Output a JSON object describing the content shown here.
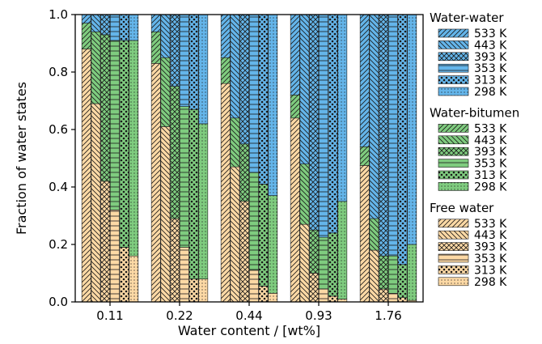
{
  "colors": {
    "water_water": "#64b5ea",
    "water_bitumen": "#7fcc7f",
    "free_water": "#fdd9a5",
    "edge": "#1a1a1a"
  },
  "hatch_patterns": {
    "533 K": "forward-diagonal",
    "443 K": "back-diagonal",
    "393 K": "cross-diagonal",
    "353 K": "horizontal",
    "313 K": "dots",
    "298 K": "small-dots"
  },
  "chart_data": {
    "type": "bar",
    "stacked": true,
    "title": "",
    "xlabel": "Water content / [wt%]",
    "ylabel": "Fraction of water states",
    "ylim": [
      0,
      1.0
    ],
    "yticks": [
      0.0,
      0.2,
      0.4,
      0.6,
      0.8,
      1.0
    ],
    "ytick_labels": [
      "0.0",
      "0.2",
      "0.4",
      "0.6",
      "0.8",
      "1.0"
    ],
    "grid": false,
    "legend_position": "right",
    "categories": [
      "0.11",
      "0.22",
      "0.44",
      "0.93",
      "1.76"
    ],
    "temperatures": [
      "533 K",
      "443 K",
      "393 K",
      "353 K",
      "313 K",
      "298 K"
    ],
    "stack_order": [
      "free_water",
      "water_bitumen",
      "water_water"
    ],
    "legend": [
      {
        "key": "water_water",
        "title": "Water-water"
      },
      {
        "key": "water_bitumen",
        "title": "Water-bitumen"
      },
      {
        "key": "free_water",
        "title": "Free water"
      }
    ],
    "free_water": {
      "0.11": [
        0.88,
        0.69,
        0.42,
        0.32,
        0.19,
        0.16
      ],
      "0.22": [
        0.83,
        0.61,
        0.29,
        0.19,
        0.08,
        0.08
      ],
      "0.44": [
        0.76,
        0.47,
        0.35,
        0.11,
        0.055,
        0.03
      ],
      "0.93": [
        0.64,
        0.27,
        0.1,
        0.045,
        0.02,
        0.01
      ],
      "1.76": [
        0.475,
        0.18,
        0.045,
        0.03,
        0.015,
        0.005
      ]
    },
    "water_bitumen": {
      "0.11": [
        0.09,
        0.25,
        0.51,
        0.59,
        0.72,
        0.75
      ],
      "0.22": [
        0.11,
        0.24,
        0.46,
        0.49,
        0.59,
        0.54
      ],
      "0.44": [
        0.09,
        0.17,
        0.2,
        0.34,
        0.355,
        0.34
      ],
      "0.93": [
        0.08,
        0.21,
        0.15,
        0.18,
        0.22,
        0.34
      ],
      "1.76": [
        0.065,
        0.11,
        0.115,
        0.13,
        0.115,
        0.195
      ]
    },
    "water_water": {
      "0.11": [
        0.03,
        0.06,
        0.07,
        0.09,
        0.09,
        0.09
      ],
      "0.22": [
        0.06,
        0.15,
        0.25,
        0.32,
        0.33,
        0.38
      ],
      "0.44": [
        0.15,
        0.36,
        0.45,
        0.55,
        0.59,
        0.63
      ],
      "0.93": [
        0.28,
        0.52,
        0.75,
        0.775,
        0.76,
        0.65
      ],
      "1.76": [
        0.46,
        0.71,
        0.84,
        0.84,
        0.87,
        0.8
      ]
    }
  }
}
